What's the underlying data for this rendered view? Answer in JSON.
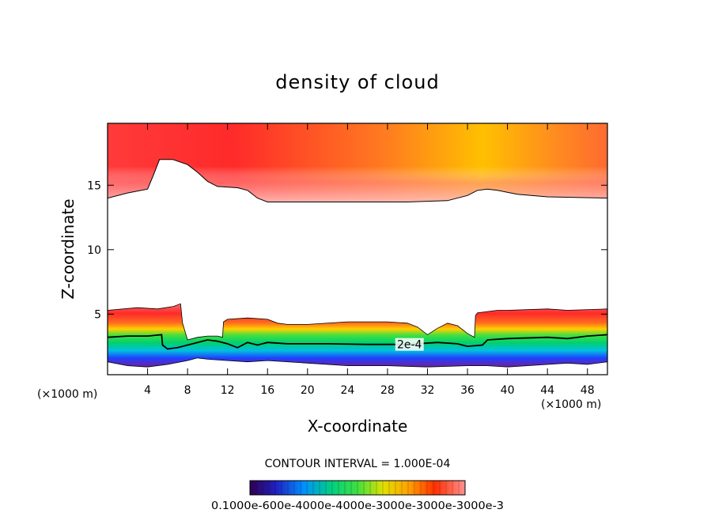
{
  "chart_data": {
    "type": "heatmap",
    "title": "density of cloud",
    "xlabel": "X-coordinate",
    "ylabel": "Z-coordinate",
    "x_unit": "(×1000 m)",
    "z_unit": "(×1000 m)",
    "xlim": [
      0,
      50
    ],
    "ylim": [
      0.3,
      19.8
    ],
    "x_ticks": [
      4,
      8,
      12,
      16,
      20,
      24,
      28,
      32,
      36,
      40,
      44,
      48
    ],
    "y_ticks": [
      5,
      10,
      15
    ],
    "contour_interval_label": "CONTOUR INTERVAL = 1.000E-04",
    "contour_label": "2e-4",
    "contour_label_position": [
      30.2,
      2.65
    ],
    "colorbar_labels": [
      "0.1000e-6",
      "0.5000e-4",
      "0.1000e-3",
      "0.1500e-3",
      "0.2000e-3",
      "0.2500e-3",
      "0.3000e-3"
    ],
    "colorbar_text": "0.1000e-600e-4000e-4000e-3000e-3000e-3000e-3",
    "upper_layer": {
      "top_z": 19.8,
      "bottom_boundary": [
        [
          0,
          14.0
        ],
        [
          2,
          14.4
        ],
        [
          4,
          14.7
        ],
        [
          4.6,
          15.8
        ],
        [
          5.2,
          17.0
        ],
        [
          6.5,
          17.0
        ],
        [
          8,
          16.6
        ],
        [
          9,
          16.0
        ],
        [
          10,
          15.3
        ],
        [
          11,
          14.9
        ],
        [
          13,
          14.8
        ],
        [
          14,
          14.6
        ],
        [
          15,
          14.0
        ],
        [
          16,
          13.7
        ],
        [
          18,
          13.7
        ],
        [
          24,
          13.7
        ],
        [
          30,
          13.7
        ],
        [
          34,
          13.8
        ],
        [
          36,
          14.2
        ],
        [
          37,
          14.6
        ],
        [
          38,
          14.7
        ],
        [
          39,
          14.6
        ],
        [
          41,
          14.3
        ],
        [
          44,
          14.1
        ],
        [
          50,
          14.0
        ]
      ]
    },
    "lower_layer": {
      "top_boundary": [
        [
          0,
          5.3
        ],
        [
          3,
          5.5
        ],
        [
          5,
          5.4
        ],
        [
          6.6,
          5.6
        ],
        [
          7.3,
          5.8
        ],
        [
          7.5,
          4.3
        ],
        [
          8,
          3.0
        ],
        [
          9,
          3.2
        ],
        [
          10,
          3.3
        ],
        [
          11,
          3.3
        ],
        [
          11.5,
          3.2
        ],
        [
          11.6,
          4.4
        ],
        [
          12,
          4.6
        ],
        [
          14,
          4.7
        ],
        [
          16,
          4.6
        ],
        [
          17,
          4.3
        ],
        [
          18,
          4.2
        ],
        [
          20,
          4.2
        ],
        [
          24,
          4.4
        ],
        [
          28,
          4.4
        ],
        [
          30,
          4.3
        ],
        [
          31,
          4.0
        ],
        [
          32,
          3.4
        ],
        [
          33,
          3.9
        ],
        [
          34,
          4.3
        ],
        [
          35,
          4.1
        ],
        [
          36,
          3.5
        ],
        [
          36.7,
          3.2
        ],
        [
          36.8,
          4.9
        ],
        [
          37,
          5.1
        ],
        [
          38,
          5.2
        ],
        [
          39,
          5.3
        ],
        [
          40,
          5.3
        ],
        [
          44,
          5.4
        ],
        [
          46,
          5.3
        ],
        [
          50,
          5.4
        ]
      ],
      "bottom_boundary": [
        [
          0,
          1.3
        ],
        [
          2,
          1.0
        ],
        [
          4,
          0.9
        ],
        [
          6,
          1.1
        ],
        [
          8,
          1.4
        ],
        [
          9,
          1.6
        ],
        [
          10,
          1.5
        ],
        [
          12,
          1.4
        ],
        [
          14,
          1.3
        ],
        [
          16,
          1.4
        ],
        [
          20,
          1.2
        ],
        [
          24,
          1.0
        ],
        [
          28,
          1.0
        ],
        [
          32,
          0.9
        ],
        [
          36,
          1.0
        ],
        [
          38,
          1.0
        ],
        [
          40,
          0.9
        ],
        [
          42,
          1.0
        ],
        [
          44,
          1.1
        ],
        [
          46,
          1.2
        ],
        [
          48,
          1.1
        ],
        [
          50,
          1.3
        ]
      ],
      "contour_2e4": [
        [
          0,
          3.2
        ],
        [
          2,
          3.3
        ],
        [
          4,
          3.3
        ],
        [
          5.4,
          3.4
        ],
        [
          5.5,
          2.6
        ],
        [
          6,
          2.3
        ],
        [
          7,
          2.4
        ],
        [
          8,
          2.6
        ],
        [
          9,
          2.8
        ],
        [
          10,
          3.0
        ],
        [
          11,
          2.9
        ],
        [
          12,
          2.7
        ],
        [
          13,
          2.4
        ],
        [
          14,
          2.8
        ],
        [
          15,
          2.6
        ],
        [
          16,
          2.8
        ],
        [
          18,
          2.7
        ],
        [
          22,
          2.7
        ],
        [
          26,
          2.65
        ],
        [
          30,
          2.65
        ],
        [
          33,
          2.8
        ],
        [
          35,
          2.7
        ],
        [
          36,
          2.5
        ],
        [
          37.5,
          2.6
        ],
        [
          38,
          3.0
        ],
        [
          40,
          3.1
        ],
        [
          44,
          3.2
        ],
        [
          46,
          3.1
        ],
        [
          48,
          3.3
        ],
        [
          50,
          3.4
        ]
      ]
    }
  }
}
